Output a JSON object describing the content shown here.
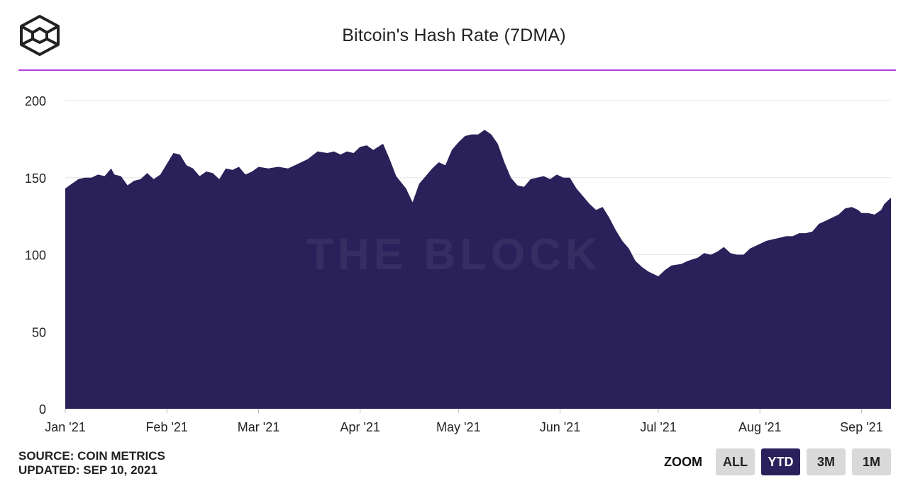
{
  "header": {
    "title": "Bitcoin's Hash Rate (7DMA)",
    "logo_icon": "the-block-cube-logo",
    "watermark": "THE BLOCK"
  },
  "colors": {
    "area": "#2a215a",
    "rule": "#b03ee0",
    "grid": "#e6e6e6",
    "active_button": "#2a215a"
  },
  "footer": {
    "source": "SOURCE: COIN METRICS",
    "updated": "UPDATED: SEP 10, 2021"
  },
  "zoom": {
    "label": "ZOOM",
    "buttons": [
      {
        "label": "ALL",
        "active": false
      },
      {
        "label": "YTD",
        "active": true
      },
      {
        "label": "3M",
        "active": false
      },
      {
        "label": "1M",
        "active": false
      }
    ]
  },
  "chart_data": {
    "type": "area",
    "title": "Bitcoin's Hash Rate (7DMA)",
    "ylim": [
      0,
      200
    ],
    "yticks": [
      0,
      50,
      100,
      150,
      200
    ],
    "xlim": [
      "2021-01-01",
      "2021-09-10"
    ],
    "xticks": [
      {
        "date": "2021-01-01",
        "label": "Jan '21"
      },
      {
        "date": "2021-02-01",
        "label": "Feb '21"
      },
      {
        "date": "2021-03-01",
        "label": "Mar '21"
      },
      {
        "date": "2021-04-01",
        "label": "Apr '21"
      },
      {
        "date": "2021-05-01",
        "label": "May '21"
      },
      {
        "date": "2021-06-01",
        "label": "Jun '21"
      },
      {
        "date": "2021-07-01",
        "label": "Jul '21"
      },
      {
        "date": "2021-08-01",
        "label": "Aug '21"
      },
      {
        "date": "2021-09-01",
        "label": "Sep '21"
      }
    ],
    "grid": true,
    "legend": "none",
    "series": [
      {
        "points": [
          [
            "2021-01-01",
            143
          ],
          [
            "2021-01-03",
            146
          ],
          [
            "2021-01-05",
            149
          ],
          [
            "2021-01-07",
            150
          ],
          [
            "2021-01-09",
            150
          ],
          [
            "2021-01-11",
            152
          ],
          [
            "2021-01-13",
            151
          ],
          [
            "2021-01-15",
            156
          ],
          [
            "2021-01-16",
            152
          ],
          [
            "2021-01-18",
            151
          ],
          [
            "2021-01-20",
            145
          ],
          [
            "2021-01-22",
            148
          ],
          [
            "2021-01-24",
            149
          ],
          [
            "2021-01-26",
            153
          ],
          [
            "2021-01-28",
            149
          ],
          [
            "2021-01-30",
            152
          ],
          [
            "2021-02-01",
            159
          ],
          [
            "2021-02-03",
            166
          ],
          [
            "2021-02-05",
            165
          ],
          [
            "2021-02-07",
            158
          ],
          [
            "2021-02-09",
            156
          ],
          [
            "2021-02-11",
            151
          ],
          [
            "2021-02-13",
            154
          ],
          [
            "2021-02-15",
            153
          ],
          [
            "2021-02-17",
            149
          ],
          [
            "2021-02-19",
            156
          ],
          [
            "2021-02-21",
            155
          ],
          [
            "2021-02-23",
            157
          ],
          [
            "2021-02-25",
            152
          ],
          [
            "2021-02-27",
            154
          ],
          [
            "2021-03-01",
            157
          ],
          [
            "2021-03-04",
            156
          ],
          [
            "2021-03-07",
            157
          ],
          [
            "2021-03-10",
            156
          ],
          [
            "2021-03-13",
            159
          ],
          [
            "2021-03-16",
            162
          ],
          [
            "2021-03-19",
            167
          ],
          [
            "2021-03-22",
            166
          ],
          [
            "2021-03-24",
            167
          ],
          [
            "2021-03-26",
            165
          ],
          [
            "2021-03-28",
            167
          ],
          [
            "2021-03-30",
            166
          ],
          [
            "2021-04-01",
            170
          ],
          [
            "2021-04-03",
            171
          ],
          [
            "2021-04-05",
            168
          ],
          [
            "2021-04-08",
            172
          ],
          [
            "2021-04-10",
            162
          ],
          [
            "2021-04-12",
            151
          ],
          [
            "2021-04-15",
            143
          ],
          [
            "2021-04-17",
            134
          ],
          [
            "2021-04-19",
            146
          ],
          [
            "2021-04-21",
            151
          ],
          [
            "2021-04-23",
            156
          ],
          [
            "2021-04-25",
            160
          ],
          [
            "2021-04-27",
            158
          ],
          [
            "2021-04-29",
            168
          ],
          [
            "2021-05-01",
            173
          ],
          [
            "2021-05-03",
            177
          ],
          [
            "2021-05-05",
            178
          ],
          [
            "2021-05-07",
            178
          ],
          [
            "2021-05-09",
            181
          ],
          [
            "2021-05-11",
            178
          ],
          [
            "2021-05-13",
            172
          ],
          [
            "2021-05-15",
            160
          ],
          [
            "2021-05-17",
            150
          ],
          [
            "2021-05-19",
            145
          ],
          [
            "2021-05-21",
            144
          ],
          [
            "2021-05-23",
            149
          ],
          [
            "2021-05-25",
            150
          ],
          [
            "2021-05-27",
            151
          ],
          [
            "2021-05-29",
            149
          ],
          [
            "2021-05-31",
            152
          ],
          [
            "2021-06-02",
            150
          ],
          [
            "2021-06-04",
            150
          ],
          [
            "2021-06-06",
            143
          ],
          [
            "2021-06-08",
            138
          ],
          [
            "2021-06-10",
            133
          ],
          [
            "2021-06-12",
            129
          ],
          [
            "2021-06-14",
            131
          ],
          [
            "2021-06-16",
            124
          ],
          [
            "2021-06-18",
            116
          ],
          [
            "2021-06-20",
            109
          ],
          [
            "2021-06-22",
            104
          ],
          [
            "2021-06-24",
            96
          ],
          [
            "2021-06-26",
            92
          ],
          [
            "2021-06-28",
            89
          ],
          [
            "2021-07-01",
            86
          ],
          [
            "2021-07-03",
            90
          ],
          [
            "2021-07-05",
            93
          ],
          [
            "2021-07-08",
            94
          ],
          [
            "2021-07-10",
            96
          ],
          [
            "2021-07-13",
            98
          ],
          [
            "2021-07-15",
            101
          ],
          [
            "2021-07-17",
            100
          ],
          [
            "2021-07-19",
            102
          ],
          [
            "2021-07-21",
            105
          ],
          [
            "2021-07-23",
            101
          ],
          [
            "2021-07-25",
            100
          ],
          [
            "2021-07-27",
            100
          ],
          [
            "2021-07-29",
            104
          ],
          [
            "2021-08-01",
            107
          ],
          [
            "2021-08-03",
            109
          ],
          [
            "2021-08-05",
            110
          ],
          [
            "2021-08-07",
            111
          ],
          [
            "2021-08-09",
            112
          ],
          [
            "2021-08-11",
            112
          ],
          [
            "2021-08-13",
            114
          ],
          [
            "2021-08-15",
            114
          ],
          [
            "2021-08-17",
            115
          ],
          [
            "2021-08-19",
            120
          ],
          [
            "2021-08-21",
            122
          ],
          [
            "2021-08-23",
            124
          ],
          [
            "2021-08-25",
            126
          ],
          [
            "2021-08-27",
            130
          ],
          [
            "2021-08-29",
            131
          ],
          [
            "2021-08-31",
            129
          ],
          [
            "2021-09-01",
            127
          ],
          [
            "2021-09-03",
            127
          ],
          [
            "2021-09-05",
            126
          ],
          [
            "2021-09-07",
            129
          ],
          [
            "2021-09-08",
            133
          ],
          [
            "2021-09-10",
            137
          ]
        ]
      }
    ]
  }
}
